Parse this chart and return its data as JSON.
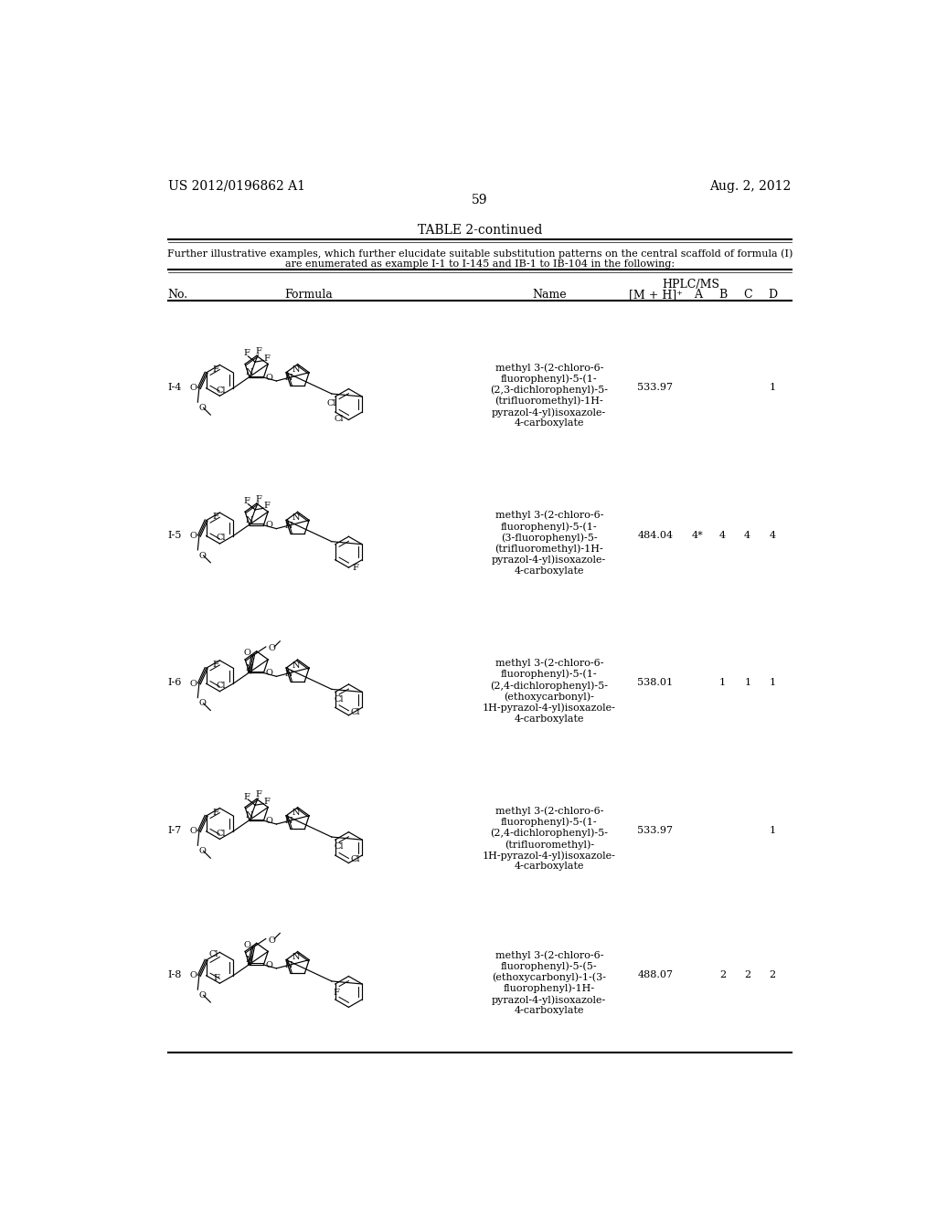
{
  "page_header_left": "US 2012/0196862 A1",
  "page_header_right": "Aug. 2, 2012",
  "page_number": "59",
  "table_title": "TABLE 2-continued",
  "table_subtitle_line1": "Further illustrative examples, which further elucidate suitable substitution patterns on the central scaffold of formula (I)",
  "table_subtitle_line2": "are enumerated as example I-1 to I-145 and IB-1 to IB-104 in the following:",
  "background_color": "#ffffff",
  "text_color": "#000000",
  "rows": [
    {
      "no": "I-4",
      "name": "methyl 3-(2-chloro-6-\nfluorophenyl)-5-(1-\n(2,3-dichlorophenyl)-5-\n(trifluoromethyl)-1H-\npyrazol-4-yl)isoxazole-\n4-carboxylate",
      "mz": "533.97",
      "A": "",
      "B": "",
      "C": "",
      "D": "1"
    },
    {
      "no": "I-5",
      "name": "methyl 3-(2-chloro-6-\nfluorophenyl)-5-(1-\n(3-fluorophenyl)-5-\n(trifluoromethyl)-1H-\npyrazol-4-yl)isoxazole-\n4-carboxylate",
      "mz": "484.04",
      "A": "4*",
      "B": "4",
      "C": "4",
      "D": "4"
    },
    {
      "no": "I-6",
      "name": "methyl 3-(2-chloro-6-\nfluorophenyl)-5-(1-\n(2,4-dichlorophenyl)-5-\n(ethoxycarbonyl)-\n1H-pyrazol-4-yl)isoxazole-\n4-carboxylate",
      "mz": "538.01",
      "A": "",
      "B": "1",
      "C": "1",
      "D": "1"
    },
    {
      "no": "I-7",
      "name": "methyl 3-(2-chloro-6-\nfluorophenyl)-5-(1-\n(2,4-dichlorophenyl)-5-\n(trifluoromethyl)-\n1H-pyrazol-4-yl)isoxazole-\n4-carboxylate",
      "mz": "533.97",
      "A": "",
      "B": "",
      "C": "",
      "D": "1"
    },
    {
      "no": "I-8",
      "name": "methyl 3-(2-chloro-6-\nfluorophenyl)-5-(5-\n(ethoxycarbonyl)-1-(3-\nfluorophenyl)-1H-\npyrazol-4-yl)isoxazole-\n4-carboxylate",
      "mz": "488.07",
      "A": "",
      "B": "2",
      "C": "2",
      "D": "2"
    }
  ],
  "font_size_header": 9,
  "font_size_body": 8,
  "font_size_page": 10,
  "font_size_table_title": 10,
  "font_size_subtitle": 8
}
